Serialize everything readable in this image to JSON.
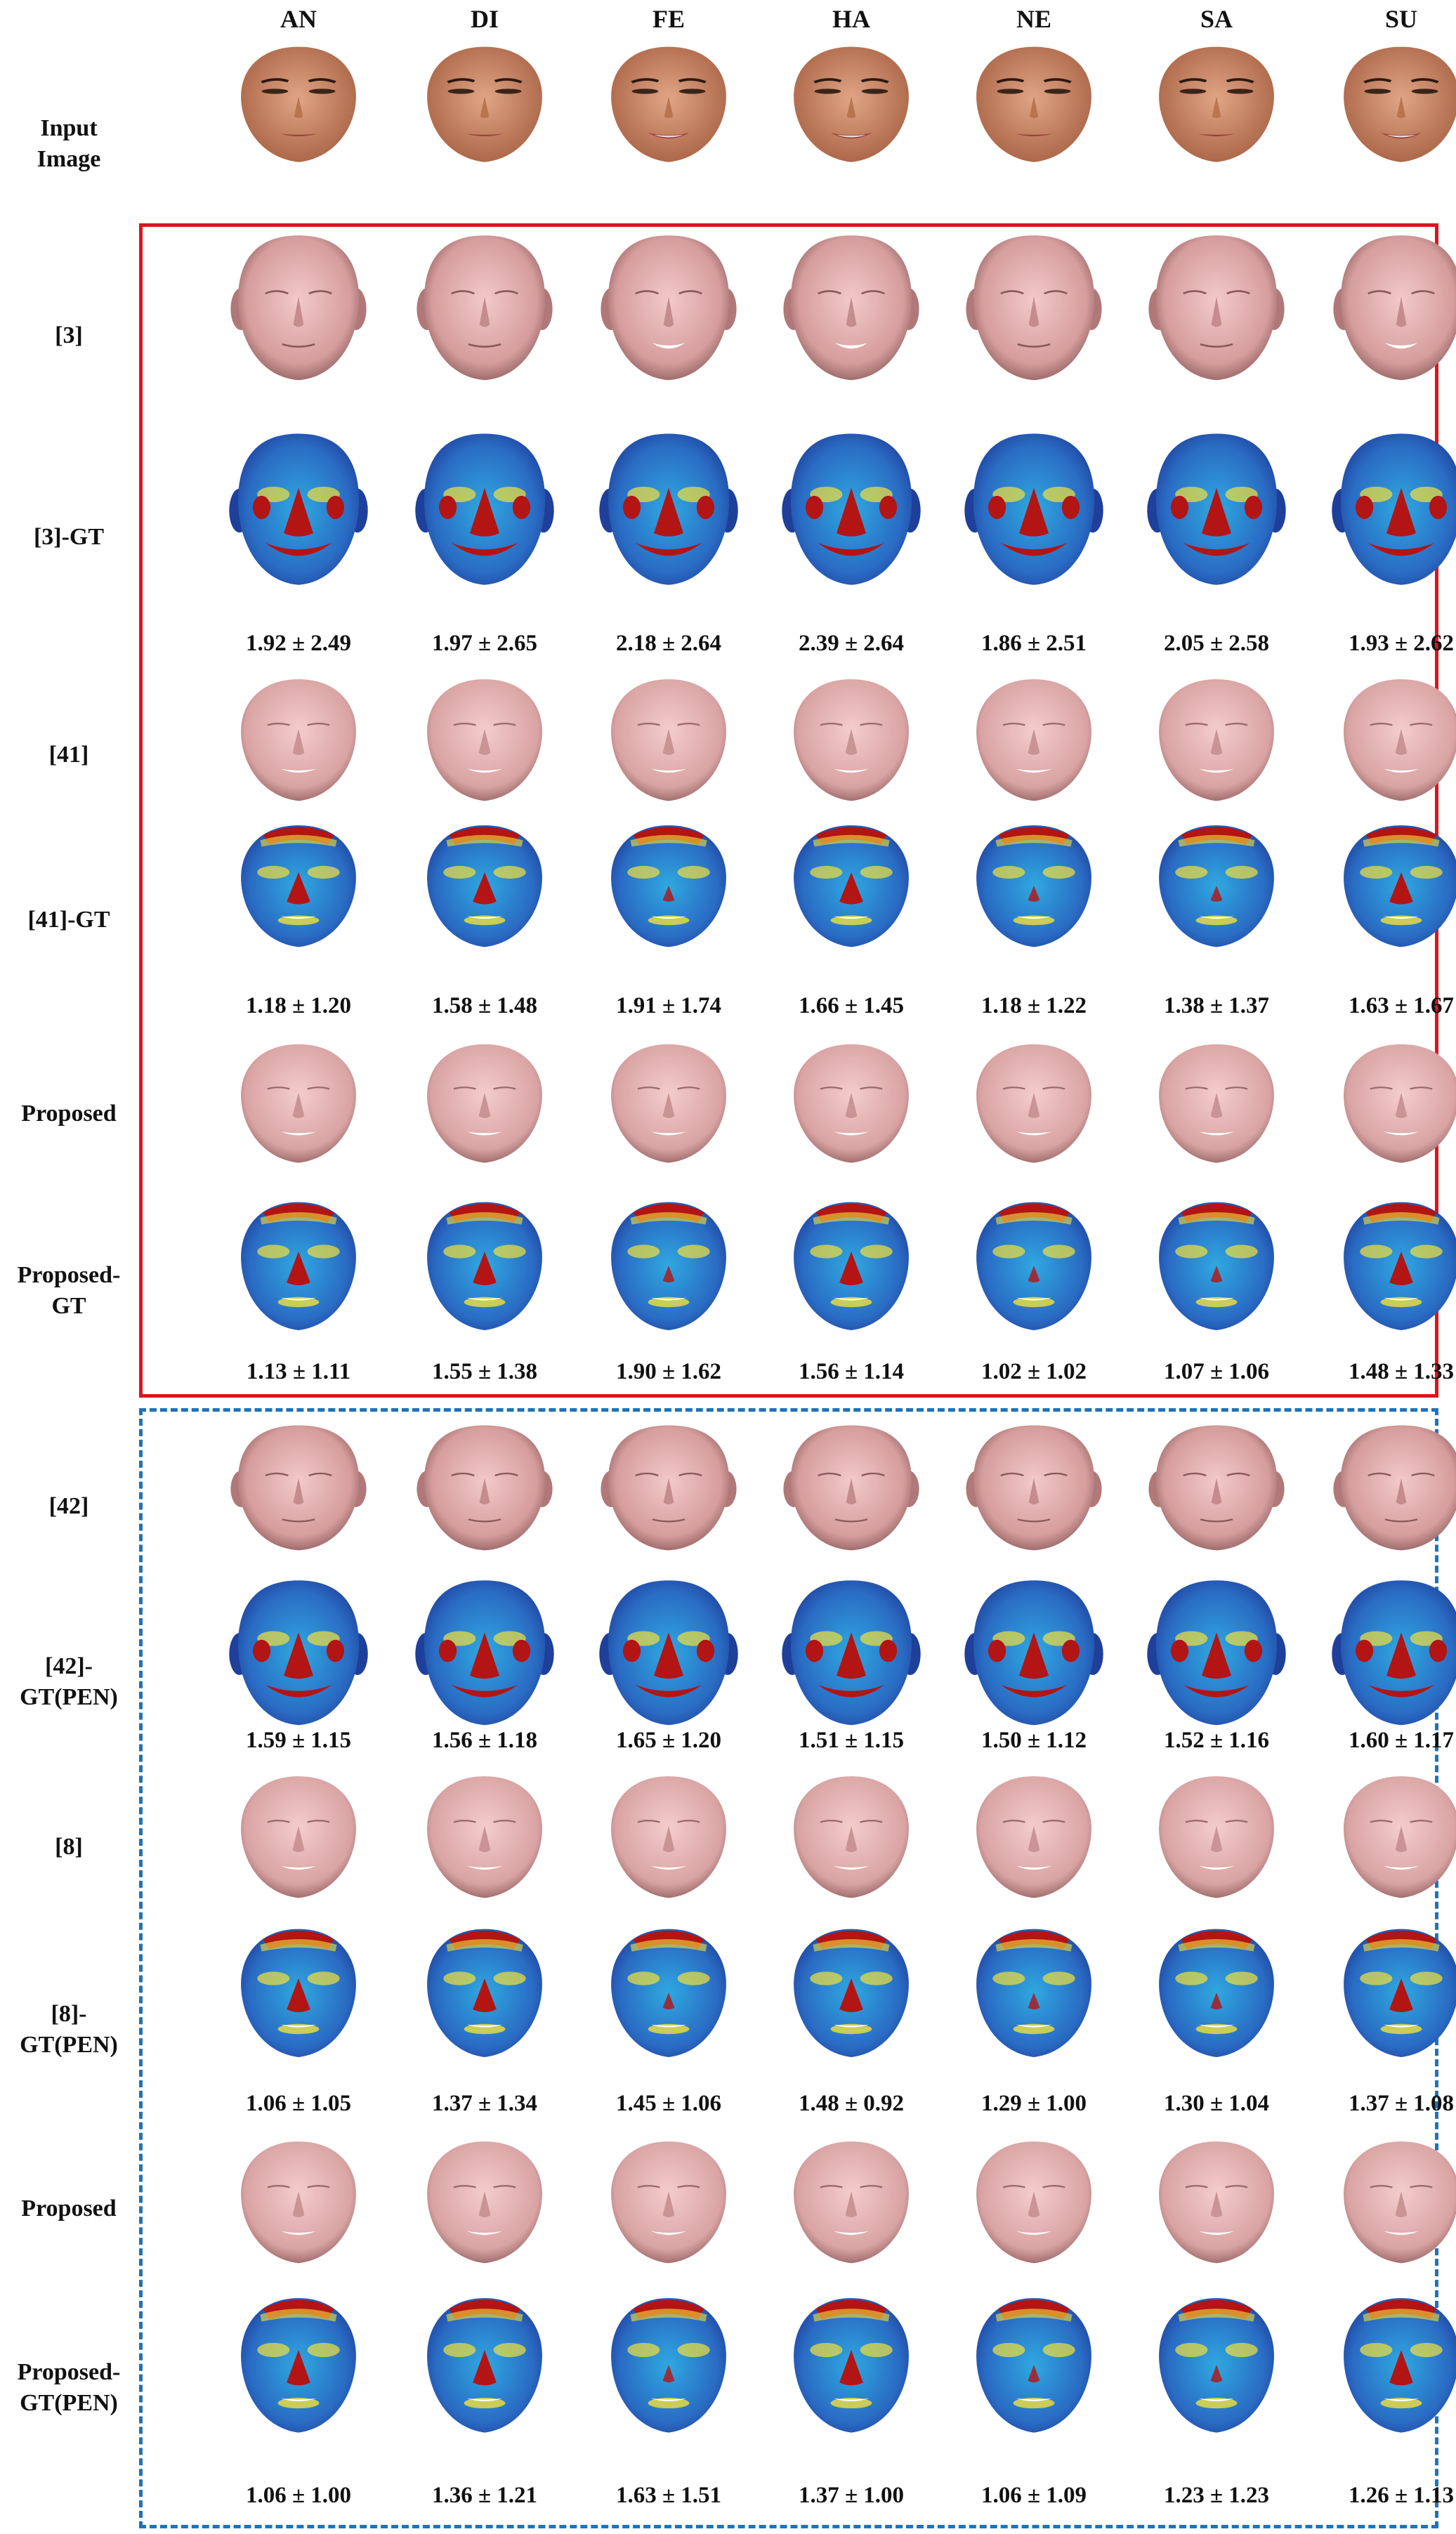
{
  "columns": [
    "AN",
    "DI",
    "FE",
    "HA",
    "NE",
    "SA",
    "SU"
  ],
  "rows": [
    {
      "label": "Input\nImage",
      "kind": "photo",
      "stats": []
    },
    {
      "label": "[3]",
      "kind": "headmesh",
      "stats": []
    },
    {
      "label": "[3]-GT",
      "kind": "headheat",
      "stats": [
        "1.92 ± 2.49",
        "1.97 ± 2.65",
        "2.18 ± 2.64",
        "2.39 ± 2.64",
        "1.86 ± 2.51",
        "2.05 ± 2.58",
        "1.93 ± 2.62"
      ]
    },
    {
      "label": "[41]",
      "kind": "facemesh",
      "stats": []
    },
    {
      "label": "[41]-GT",
      "kind": "faceheat",
      "stats": [
        "1.18 ± 1.20",
        "1.58 ± 1.48",
        "1.91 ± 1.74",
        "1.66 ± 1.45",
        "1.18 ± 1.22",
        "1.38 ± 1.37",
        "1.63 ± 1.67"
      ]
    },
    {
      "label": "Proposed",
      "kind": "facemesh",
      "stats": []
    },
    {
      "label": "Proposed-\nGT",
      "kind": "faceheat",
      "stats": [
        "1.13 ± 1.11",
        "1.55 ± 1.38",
        "1.90 ± 1.62",
        "1.56 ± 1.14",
        "1.02 ± 1.02",
        "1.07 ± 1.06",
        "1.48 ± 1.33"
      ]
    },
    {
      "label": "[42]",
      "kind": "headmesh2",
      "stats": []
    },
    {
      "label": "[42]-\nGT(PEN)",
      "kind": "headheat2",
      "stats": [
        "1.59 ± 1.15",
        "1.56 ± 1.18",
        "1.65 ± 1.20",
        "1.51 ± 1.15",
        "1.50 ± 1.12",
        "1.52 ± 1.16",
        "1.60 ± 1.17"
      ]
    },
    {
      "label": "[8]",
      "kind": "facemesh",
      "stats": []
    },
    {
      "label": "[8]-\nGT(PEN)",
      "kind": "faceheat",
      "stats": [
        "1.06 ± 1.05",
        "1.37 ± 1.34",
        "1.45 ± 1.06",
        "1.48 ± 0.92",
        "1.29 ± 1.00",
        "1.30 ± 1.04",
        "1.37 ± 1.08"
      ]
    },
    {
      "label": "Proposed",
      "kind": "facemesh",
      "stats": []
    },
    {
      "label": "Proposed-\nGT(PEN)",
      "kind": "faceheat",
      "stats": [
        "1.06 ± 1.00",
        "1.36 ± 1.21",
        "1.63 ± 1.51",
        "1.37 ± 1.00",
        "1.06 ± 1.09",
        "1.23 ± 1.23",
        "1.26 ± 1.13"
      ]
    }
  ],
  "colors": {
    "skin": "#c98a6a",
    "mesh": "#e6b2b2",
    "heat_low": "#1e3f9a",
    "heat_mid": "#2fa8e0",
    "heat_warm": "#f2e13a",
    "heat_high": "#b31414",
    "frame_red": "#d9161d",
    "frame_blue": "#1f73b7"
  }
}
